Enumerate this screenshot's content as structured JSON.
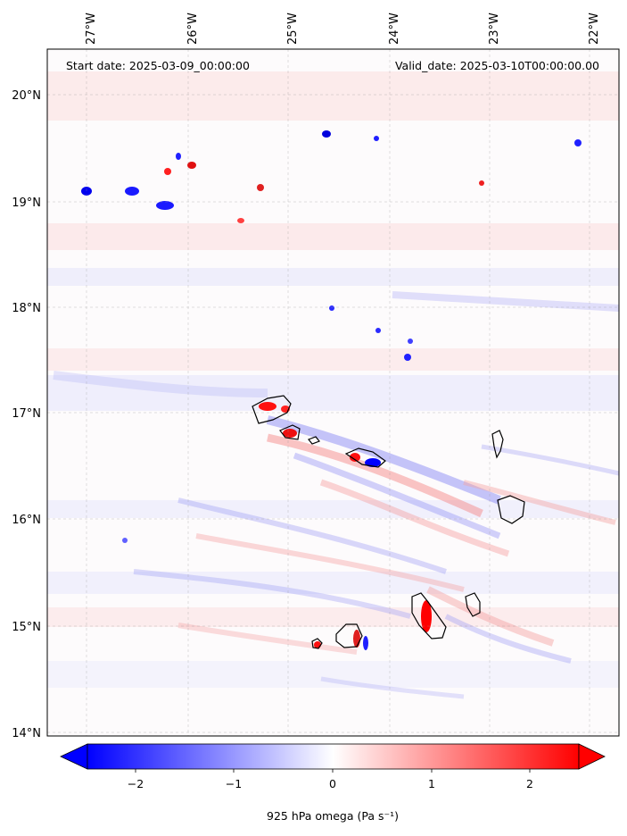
{
  "map": {
    "start_label": "Start date: 2025-03-09_00:00:00",
    "valid_label": "Valid_date: 2025-03-10T00:00:00.00",
    "lon_labels": [
      "27°W",
      "26°W",
      "25°W",
      "24°W",
      "23°W",
      "22°W"
    ],
    "lon_values": [
      -27,
      -26,
      -25,
      -24,
      -23,
      -22
    ],
    "lat_labels": [
      "20°N",
      "19°N",
      "18°N",
      "17°N",
      "16°N",
      "15°N",
      "14°N"
    ],
    "lat_values": [
      20,
      19,
      18,
      17,
      16,
      15,
      14
    ],
    "lon_range": [
      -27.3,
      -21.7
    ],
    "lat_range": [
      13.97,
      20.4
    ],
    "gridlines": true,
    "coastlines": true
  },
  "colorbar": {
    "ticks": [
      "−2",
      "−1",
      "0",
      "1",
      "2"
    ],
    "tick_values": [
      -2,
      -1,
      0,
      1,
      2
    ],
    "range": [
      -2.5,
      2.5
    ],
    "extend": "both",
    "label": "925 hPa omega (Pa s⁻¹)",
    "colormap": "bwr",
    "low_color": "#0000ff",
    "mid_color": "#ffffff",
    "high_color": "#ff0000"
  }
}
